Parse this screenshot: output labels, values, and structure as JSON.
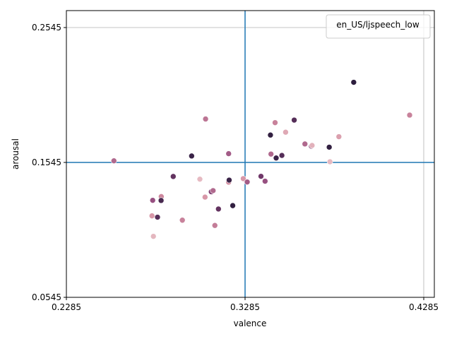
{
  "chart_data": {
    "type": "scatter",
    "title": "",
    "xlabel": "valence",
    "ylabel": "arousal",
    "xlim": [
      0.2285,
      0.4285
    ],
    "ylim": [
      0.0545,
      0.2545
    ],
    "xticks": [
      0.2285,
      0.3285,
      0.4285
    ],
    "yticks": [
      0.0545,
      0.1545,
      0.2545
    ],
    "xtick_labels": [
      "0.2285",
      "0.3285",
      "0.4285"
    ],
    "ytick_labels": [
      "0.0545",
      "0.1545",
      "0.2545"
    ],
    "grid": true,
    "legend": {
      "title": "en_US/ljspeech_low",
      "placement": "top-right"
    },
    "reference_lines": {
      "x": 0.3285,
      "y": 0.1545,
      "color": "#1f77b4"
    },
    "points": [
      {
        "x": 0.2551,
        "y": 0.1557,
        "c": 0.5
      },
      {
        "x": 0.2764,
        "y": 0.1149,
        "c": 0.3
      },
      {
        "x": 0.2772,
        "y": 0.0997,
        "c": 0.12
      },
      {
        "x": 0.2768,
        "y": 0.1264,
        "c": 0.6
      },
      {
        "x": 0.2795,
        "y": 0.1139,
        "c": 0.85
      },
      {
        "x": 0.2816,
        "y": 0.1292,
        "c": 0.38
      },
      {
        "x": 0.2815,
        "y": 0.1263,
        "c": 0.9
      },
      {
        "x": 0.2883,
        "y": 0.1441,
        "c": 0.8
      },
      {
        "x": 0.2934,
        "y": 0.1117,
        "c": 0.4
      },
      {
        "x": 0.2986,
        "y": 0.1593,
        "c": 0.95
      },
      {
        "x": 0.3032,
        "y": 0.1421,
        "c": 0.1
      },
      {
        "x": 0.3061,
        "y": 0.1288,
        "c": 0.3
      },
      {
        "x": 0.3064,
        "y": 0.1867,
        "c": 0.45
      },
      {
        "x": 0.3096,
        "y": 0.1328,
        "c": 0.7
      },
      {
        "x": 0.3106,
        "y": 0.1336,
        "c": 0.5
      },
      {
        "x": 0.3116,
        "y": 0.1078,
        "c": 0.42
      },
      {
        "x": 0.3136,
        "y": 0.12,
        "c": 0.8
      },
      {
        "x": 0.3193,
        "y": 0.161,
        "c": 0.55
      },
      {
        "x": 0.3193,
        "y": 0.1399,
        "c": 0.35
      },
      {
        "x": 0.3196,
        "y": 0.1414,
        "c": 0.95
      },
      {
        "x": 0.3216,
        "y": 0.1225,
        "c": 0.98
      },
      {
        "x": 0.3275,
        "y": 0.1425,
        "c": 0.3
      },
      {
        "x": 0.3297,
        "y": 0.14,
        "c": 0.55
      },
      {
        "x": 0.3374,
        "y": 0.1442,
        "c": 0.75
      },
      {
        "x": 0.3397,
        "y": 0.1406,
        "c": 0.6
      },
      {
        "x": 0.3427,
        "y": 0.1748,
        "c": 0.98
      },
      {
        "x": 0.343,
        "y": 0.1607,
        "c": 0.5
      },
      {
        "x": 0.3453,
        "y": 0.184,
        "c": 0.4
      },
      {
        "x": 0.3459,
        "y": 0.1578,
        "c": 0.95
      },
      {
        "x": 0.3491,
        "y": 0.1597,
        "c": 0.85
      },
      {
        "x": 0.3512,
        "y": 0.1769,
        "c": 0.2
      },
      {
        "x": 0.356,
        "y": 0.1859,
        "c": 0.85
      },
      {
        "x": 0.362,
        "y": 0.1682,
        "c": 0.5
      },
      {
        "x": 0.3656,
        "y": 0.1666,
        "c": 0.7
      },
      {
        "x": 0.366,
        "y": 0.1671,
        "c": 0.15
      },
      {
        "x": 0.3756,
        "y": 0.1658,
        "c": 0.98
      },
      {
        "x": 0.376,
        "y": 0.155,
        "c": 0.1
      },
      {
        "x": 0.381,
        "y": 0.1736,
        "c": 0.25
      },
      {
        "x": 0.3893,
        "y": 0.2139,
        "c": 1.0
      },
      {
        "x": 0.4206,
        "y": 0.1896,
        "c": 0.4
      }
    ]
  }
}
